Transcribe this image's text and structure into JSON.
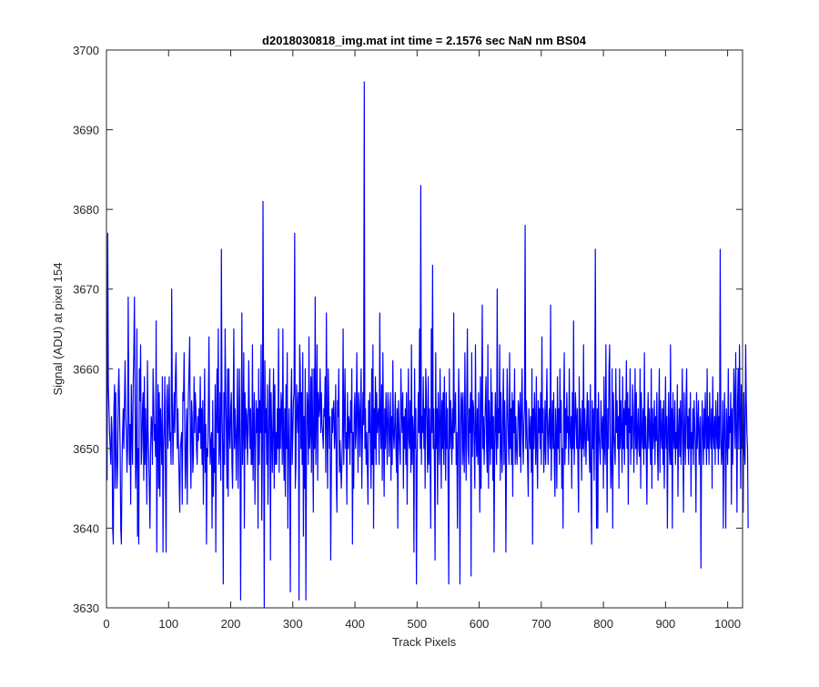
{
  "colors": {
    "line": "#0000ff",
    "axis": "#262626",
    "background": "#ffffff"
  },
  "chart_data": {
    "type": "line",
    "title": "d2018030818_img.mat int time = 2.1576 sec  NaN nm BS04",
    "xlabel": "Track Pixels",
    "ylabel": "Signal (ADU) at pixel 154",
    "xlim": [
      0,
      1024
    ],
    "ylim": [
      3630,
      3700
    ],
    "xticks": [
      0,
      100,
      200,
      300,
      400,
      500,
      600,
      700,
      800,
      900,
      1000
    ],
    "yticks": [
      3630,
      3640,
      3650,
      3660,
      3670,
      3680,
      3690,
      3700
    ],
    "grid": false,
    "legend": "none",
    "series": [
      {
        "x_start": 1,
        "x_step": 1,
        "values": [
          3646,
          3677,
          3658,
          3655,
          3652,
          3650,
          3648,
          3654,
          3652,
          3640,
          3638,
          3655,
          3658,
          3645,
          3657,
          3650,
          3645,
          3648,
          3657,
          3660,
          3655,
          3650,
          3640,
          3638,
          3648,
          3652,
          3655,
          3650,
          3656,
          3661,
          3654,
          3652,
          3647,
          3650,
          3669,
          3655,
          3648,
          3653,
          3643,
          3658,
          3652,
          3648,
          3658,
          3662,
          3669,
          3656,
          3645,
          3649,
          3665,
          3639,
          3650,
          3638,
          3660,
          3656,
          3663,
          3648,
          3650,
          3655,
          3657,
          3646,
          3659,
          3648,
          3655,
          3650,
          3643,
          3661,
          3652,
          3649,
          3645,
          3640,
          3650,
          3654,
          3653,
          3648,
          3660,
          3656,
          3651,
          3653,
          3649,
          3666,
          3637,
          3650,
          3658,
          3645,
          3657,
          3644,
          3655,
          3652,
          3648,
          3659,
          3637,
          3650,
          3653,
          3659,
          3646,
          3637,
          3656,
          3658,
          3650,
          3654,
          3659,
          3651,
          3652,
          3648,
          3670,
          3656,
          3648,
          3653,
          3657,
          3652,
          3659,
          3662,
          3655,
          3650,
          3655,
          3650,
          3646,
          3642,
          3650,
          3651,
          3652,
          3643,
          3657,
          3656,
          3662,
          3652,
          3645,
          3650,
          3655,
          3643,
          3653,
          3657,
          3660,
          3664,
          3650,
          3645,
          3656,
          3654,
          3647,
          3649,
          3659,
          3652,
          3657,
          3655,
          3650,
          3648,
          3654,
          3651,
          3655,
          3652,
          3659,
          3650,
          3655,
          3648,
          3656,
          3643,
          3651,
          3660,
          3647,
          3653,
          3638,
          3650,
          3649,
          3655,
          3664,
          3652,
          3648,
          3651,
          3652,
          3640,
          3656,
          3644,
          3650,
          3647,
          3658,
          3637,
          3654,
          3660,
          3652,
          3665,
          3648,
          3650,
          3657,
          3646,
          3675,
          3655,
          3650,
          3633,
          3657,
          3648,
          3665,
          3657,
          3652,
          3645,
          3660,
          3644,
          3660,
          3652,
          3650,
          3655,
          3657,
          3648,
          3645,
          3654,
          3665,
          3650,
          3655,
          3652,
          3646,
          3653,
          3660,
          3645,
          3652,
          3660,
          3650,
          3631,
          3652,
          3667,
          3648,
          3653,
          3662,
          3640,
          3657,
          3650,
          3655,
          3654,
          3648,
          3652,
          3661,
          3655,
          3650,
          3655,
          3648,
          3648,
          3663,
          3646,
          3653,
          3657,
          3643,
          3650,
          3656,
          3652,
          3655,
          3640,
          3660,
          3648,
          3656,
          3652,
          3663,
          3641,
          3650,
          3681,
          3654,
          3630,
          3661,
          3652,
          3655,
          3648,
          3658,
          3643,
          3650,
          3657,
          3660,
          3636,
          3657,
          3652,
          3647,
          3653,
          3660,
          3645,
          3658,
          3648,
          3652,
          3648,
          3655,
          3650,
          3665,
          3647,
          3655,
          3650,
          3657,
          3655,
          3648,
          3665,
          3650,
          3646,
          3655,
          3644,
          3658,
          3650,
          3662,
          3640,
          3650,
          3655,
          3648,
          3632,
          3655,
          3660,
          3648,
          3652,
          3656,
          3657,
          3677,
          3645,
          3648,
          3658,
          3655,
          3652,
          3657,
          3631,
          3663,
          3660,
          3650,
          3657,
          3648,
          3662,
          3639,
          3654,
          3645,
          3660,
          3631,
          3650,
          3657,
          3655,
          3648,
          3664,
          3650,
          3652,
          3659,
          3647,
          3660,
          3652,
          3642,
          3660,
          3650,
          3669,
          3648,
          3655,
          3663,
          3646,
          3657,
          3654,
          3655,
          3660,
          3652,
          3657,
          3653,
          3652,
          3650,
          3655,
          3654,
          3659,
          3647,
          3667,
          3653,
          3645,
          3660,
          3655,
          3650,
          3654,
          3636,
          3647,
          3655,
          3652,
          3655,
          3656,
          3650,
          3652,
          3658,
          3646,
          3642,
          3656,
          3654,
          3660,
          3647,
          3651,
          3648,
          3645,
          3648,
          3652,
          3665,
          3648,
          3654,
          3660,
          3650,
          3652,
          3643,
          3657,
          3650,
          3654,
          3653,
          3648,
          3656,
          3652,
          3660,
          3638,
          3652,
          3645,
          3655,
          3657,
          3650,
          3652,
          3662,
          3654,
          3647,
          3657,
          3655,
          3649,
          3655,
          3660,
          3645,
          3651,
          3657,
          3653,
          3696,
          3650,
          3655,
          3648,
          3652,
          3648,
          3643,
          3656,
          3652,
          3657,
          3650,
          3645,
          3660,
          3648,
          3663,
          3640,
          3655,
          3650,
          3659,
          3648,
          3657,
          3652,
          3654,
          3655,
          3648,
          3667,
          3653,
          3650,
          3658,
          3646,
          3662,
          3652,
          3644,
          3655,
          3650,
          3657,
          3653,
          3648,
          3657,
          3655,
          3649,
          3652,
          3657,
          3646,
          3654,
          3648,
          3661,
          3652,
          3650,
          3653,
          3657,
          3650,
          3647,
          3655,
          3640,
          3656,
          3653,
          3650,
          3648,
          3660,
          3655,
          3652,
          3657,
          3645,
          3654,
          3650,
          3655,
          3648,
          3657,
          3643,
          3652,
          3660,
          3651,
          3650,
          3656,
          3647,
          3663,
          3648,
          3654,
          3652,
          3637,
          3660,
          3650,
          3655,
          3633,
          3648,
          3652,
          3657,
          3652,
          3665,
          3650,
          3683,
          3648,
          3654,
          3652,
          3659,
          3650,
          3655,
          3645,
          3660,
          3657,
          3652,
          3647,
          3659,
          3648,
          3655,
          3650,
          3640,
          3665,
          3652,
          3673,
          3650,
          3655,
          3648,
          3636,
          3662,
          3650,
          3655,
          3643,
          3657,
          3652,
          3648,
          3660,
          3654,
          3645,
          3656,
          3650,
          3657,
          3648,
          3659,
          3652,
          3646,
          3657,
          3650,
          3655,
          3645,
          3633,
          3660,
          3650,
          3656,
          3652,
          3648,
          3655,
          3650,
          3667,
          3652,
          3654,
          3657,
          3648,
          3652,
          3640,
          3650,
          3660,
          3655,
          3633,
          3651,
          3657,
          3656,
          3648,
          3657,
          3650,
          3647,
          3662,
          3652,
          3646,
          3656,
          3665,
          3650,
          3648,
          3655,
          3652,
          3657,
          3634,
          3662,
          3649,
          3656,
          3655,
          3650,
          3645,
          3663,
          3652,
          3649,
          3655,
          3648,
          3657,
          3650,
          3642,
          3659,
          3645,
          3656,
          3668,
          3650,
          3654,
          3648,
          3652,
          3656,
          3659,
          3650,
          3647,
          3663,
          3645,
          3656,
          3652,
          3648,
          3660,
          3650,
          3657,
          3646,
          3654,
          3637,
          3651,
          3657,
          3652,
          3648,
          3670,
          3650,
          3655,
          3652,
          3663,
          3646,
          3657,
          3650,
          3647,
          3655,
          3660,
          3648,
          3656,
          3652,
          3637,
          3650,
          3660,
          3655,
          3651,
          3648,
          3662,
          3650,
          3655,
          3648,
          3657,
          3644,
          3656,
          3652,
          3660,
          3648,
          3654,
          3650,
          3648,
          3652,
          3656,
          3655,
          3649,
          3657,
          3647,
          3654,
          3660,
          3652,
          3648,
          3653,
          3655,
          3678,
          3650,
          3656,
          3652,
          3648,
          3644,
          3655,
          3652,
          3650,
          3654,
          3647,
          3660,
          3638,
          3655,
          3650,
          3657,
          3653,
          3648,
          3659,
          3650,
          3645,
          3656,
          3652,
          3655,
          3650,
          3657,
          3648,
          3664,
          3652,
          3655,
          3647,
          3650,
          3656,
          3648,
          3654,
          3660,
          3652,
          3648,
          3653,
          3655,
          3650,
          3668,
          3646,
          3652,
          3656,
          3650,
          3657,
          3648,
          3644,
          3655,
          3652,
          3645,
          3659,
          3650,
          3655,
          3648,
          3660,
          3652,
          3656,
          3645,
          3650,
          3640,
          3655,
          3662,
          3648,
          3655,
          3650,
          3657,
          3652,
          3654,
          3648,
          3660,
          3652,
          3650,
          3654,
          3645,
          3657,
          3650,
          3666,
          3648,
          3652,
          3657,
          3654,
          3650,
          3655,
          3648,
          3642,
          3659,
          3650,
          3655,
          3652,
          3646,
          3656,
          3650,
          3663,
          3649,
          3655,
          3652,
          3648,
          3653,
          3657,
          3651,
          3656,
          3650,
          3647,
          3658,
          3646,
          3638,
          3656,
          3650,
          3655,
          3646,
          3654,
          3675,
          3652,
          3640,
          3655,
          3640,
          3657,
          3652,
          3650,
          3648,
          3656,
          3653,
          3650,
          3654,
          3645,
          3659,
          3650,
          3648,
          3663,
          3652,
          3642,
          3655,
          3650,
          3660,
          3663,
          3650,
          3645,
          3648,
          3660,
          3640,
          3657,
          3652,
          3650,
          3648,
          3660,
          3652,
          3656,
          3650,
          3654,
          3645,
          3660,
          3650,
          3656,
          3652,
          3647,
          3659,
          3650,
          3655,
          3648,
          3656,
          3653,
          3661,
          3650,
          3657,
          3643,
          3655,
          3652,
          3660,
          3648,
          3654,
          3650,
          3658,
          3655,
          3647,
          3652,
          3660,
          3650,
          3657,
          3648,
          3652,
          3655,
          3650,
          3649,
          3660,
          3645,
          3657,
          3652,
          3650,
          3655,
          3648,
          3662,
          3650,
          3654,
          3649,
          3643,
          3653,
          3657,
          3650,
          3655,
          3652,
          3648,
          3660,
          3645,
          3655,
          3650,
          3652,
          3656,
          3648,
          3654,
          3651,
          3657,
          3650,
          3646,
          3654,
          3660,
          3647,
          3656,
          3652,
          3650,
          3655,
          3648,
          3656,
          3645,
          3652,
          3659,
          3650,
          3654,
          3640,
          3652,
          3657,
          3650,
          3648,
          3663,
          3648,
          3655,
          3640,
          3657,
          3652,
          3650,
          3656,
          3648,
          3652,
          3650,
          3658,
          3644,
          3652,
          3655,
          3649,
          3656,
          3648,
          3653,
          3660,
          3650,
          3642,
          3657,
          3652,
          3648,
          3656,
          3660,
          3650,
          3654,
          3648,
          3655,
          3650,
          3657,
          3644,
          3652,
          3650,
          3655,
          3648,
          3656,
          3653,
          3650,
          3642,
          3657,
          3650,
          3653,
          3656,
          3648,
          3652,
          3654,
          3635,
          3650,
          3656,
          3652,
          3648,
          3655,
          3650,
          3657,
          3652,
          3648,
          3660,
          3650,
          3654,
          3648,
          3657,
          3652,
          3650,
          3655,
          3645,
          3659,
          3652,
          3650,
          3654,
          3648,
          3656,
          3652,
          3650,
          3657,
          3648,
          3654,
          3650,
          3675,
          3652,
          3648,
          3650,
          3656,
          3640,
          3652,
          3657,
          3650,
          3640,
          3655,
          3652,
          3648,
          3660,
          3650,
          3654,
          3652,
          3657,
          3643,
          3655,
          3648,
          3652,
          3660,
          3656,
          3650,
          3662,
          3653,
          3642,
          3656,
          3660,
          3650,
          3663,
          3655,
          3645,
          3658,
          3650,
          3653,
          3642,
          3657,
          3650,
          3648,
          3663,
          3656,
          3652,
          3650,
          3640
        ]
      }
    ]
  }
}
